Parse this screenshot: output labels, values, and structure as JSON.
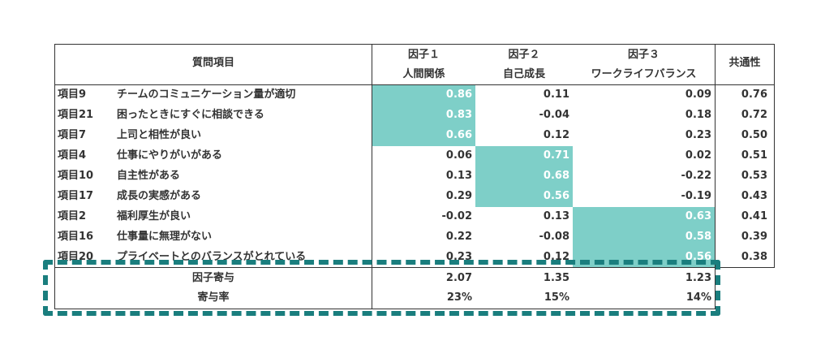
{
  "colors": {
    "highlight": "#7ecfc8",
    "dash": "#1a7e7e",
    "border": "#333333"
  },
  "header": {
    "item_col": "質問項目",
    "factor1_title": "因子１",
    "factor1_sub": "人間関係",
    "factor2_title": "因子２",
    "factor2_sub": "自己成長",
    "factor3_title": "因子３",
    "factor3_sub": "ワークライフバランス",
    "communality": "共通性"
  },
  "rows": [
    {
      "id": "項目9",
      "text": "チームのコミュニケーション量が適切",
      "f1": "0.86",
      "f2": "0.11",
      "f3": "0.09",
      "h": "0.76"
    },
    {
      "id": "項目21",
      "text": "困ったときにすぐに相談できる",
      "f1": "0.83",
      "f2": "-0.04",
      "f3": "0.18",
      "h": "0.72"
    },
    {
      "id": "項目7",
      "text": "上司と相性が良い",
      "f1": "0.66",
      "f2": "0.12",
      "f3": "0.23",
      "h": "0.50"
    },
    {
      "id": "項目4",
      "text": "仕事にやりがいがある",
      "f1": "0.06",
      "f2": "0.71",
      "f3": "0.02",
      "h": "0.51"
    },
    {
      "id": "項目10",
      "text": "自主性がある",
      "f1": "0.13",
      "f2": "0.68",
      "f3": "-0.22",
      "h": "0.53"
    },
    {
      "id": "項目17",
      "text": "成長の実感がある",
      "f1": "0.29",
      "f2": "0.56",
      "f3": "-0.19",
      "h": "0.43"
    },
    {
      "id": "項目2",
      "text": "福利厚生が良い",
      "f1": "-0.02",
      "f2": "0.13",
      "f3": "0.63",
      "h": "0.41"
    },
    {
      "id": "項目16",
      "text": "仕事量に無理がない",
      "f1": "0.22",
      "f2": "-0.08",
      "f3": "0.58",
      "h": "0.39"
    },
    {
      "id": "項目20",
      "text": "プライベートとのバランスがとれている",
      "f1": "0.23",
      "f2": "0.12",
      "f3": "0.56",
      "h": "0.38"
    }
  ],
  "footer": {
    "contribution_label": "因子寄与",
    "contribution": {
      "f1": "2.07",
      "f2": "1.35",
      "f3": "1.23"
    },
    "rate_label": "寄与率",
    "rate": {
      "f1": "23%",
      "f2": "15%",
      "f3": "14%"
    }
  }
}
